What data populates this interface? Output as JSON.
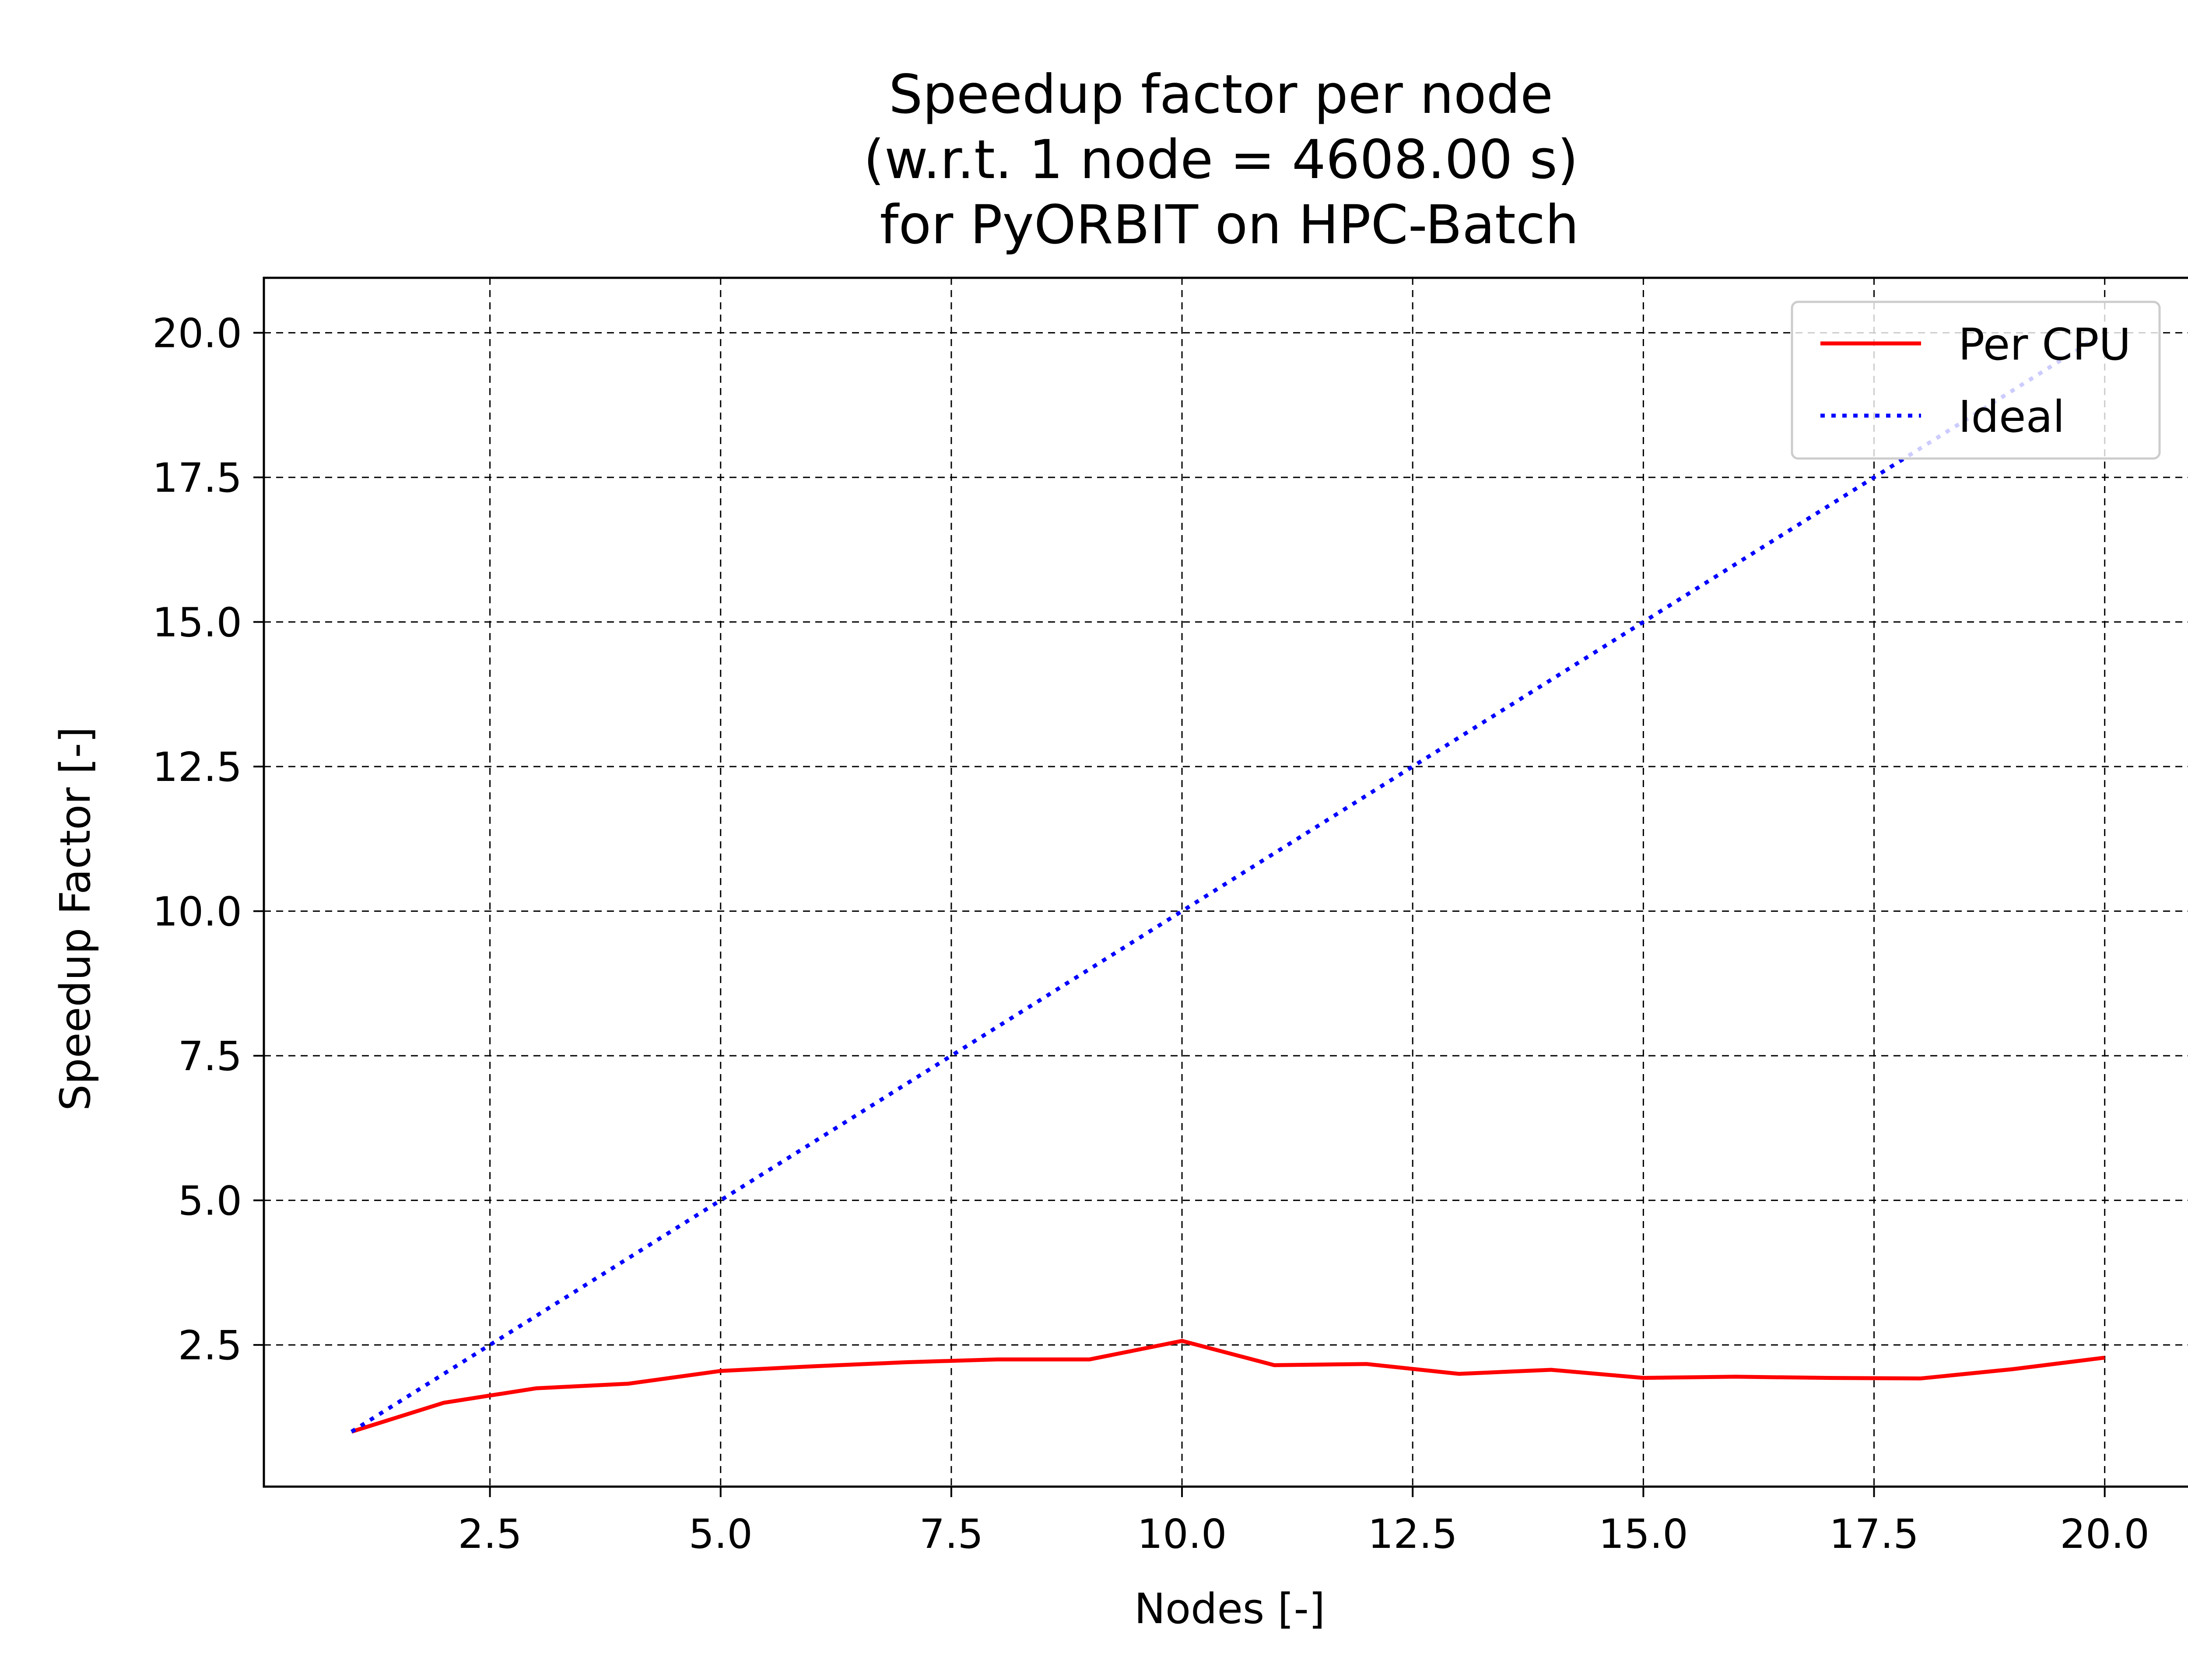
{
  "chart_data": {
    "type": "line",
    "title_lines": [
      "Speedup factor per node",
      "(w.r.t. 1 node = 4608.00 s)",
      " for PyORBIT on HPC-Batch"
    ],
    "xlabel": "Nodes [-]",
    "ylabel": "Speedup Factor [-]",
    "xlim": [
      0.05,
      20.95
    ],
    "ylim": [
      0.05,
      20.95
    ],
    "xticks": [
      2.5,
      5.0,
      7.5,
      10.0,
      12.5,
      15.0,
      17.5,
      20.0
    ],
    "xtick_labels": [
      "2.5",
      "5.0",
      "7.5",
      "10.0",
      "12.5",
      "15.0",
      "17.5",
      "20.0"
    ],
    "yticks": [
      2.5,
      5.0,
      7.5,
      10.0,
      12.5,
      15.0,
      17.5,
      20.0
    ],
    "ytick_labels": [
      "2.5",
      "5.0",
      "7.5",
      "10.0",
      "12.5",
      "15.0",
      "17.5",
      "20.0"
    ],
    "grid": true,
    "legend_position": "top-right",
    "series": [
      {
        "name": "Per CPU",
        "color": "#ff0000",
        "style": "solid",
        "x": [
          1,
          2,
          3,
          4,
          5,
          6,
          7,
          8,
          9,
          10,
          11,
          12,
          13,
          14,
          15,
          16,
          17,
          18,
          19,
          20
        ],
        "y": [
          1.0,
          1.5,
          1.75,
          1.83,
          2.05,
          2.13,
          2.2,
          2.25,
          2.25,
          2.57,
          2.15,
          2.17,
          2.0,
          2.07,
          1.93,
          1.95,
          1.93,
          1.92,
          2.08,
          2.28
        ]
      },
      {
        "name": "Ideal",
        "color": "#0000ff",
        "style": "dotted",
        "x": [
          1,
          20
        ],
        "y": [
          1,
          20
        ]
      }
    ]
  }
}
